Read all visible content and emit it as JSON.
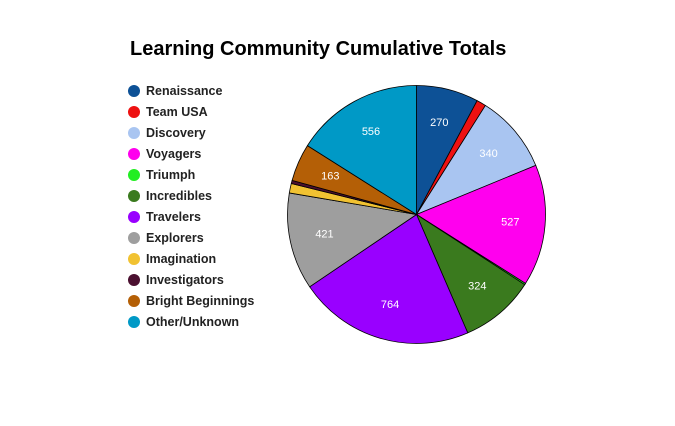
{
  "chart_data": {
    "type": "pie",
    "title": "Learning Community Cumulative Totals",
    "legend_position": "left",
    "slices": [
      {
        "name": "Renaissance",
        "value": 270,
        "label": "270",
        "color": "#0d5196"
      },
      {
        "name": "Team USA",
        "value": 41,
        "label": "",
        "color": "#ee1111"
      },
      {
        "name": "Discovery",
        "value": 340,
        "label": "340",
        "color": "#a9c5f1"
      },
      {
        "name": "Voyagers",
        "value": 527,
        "label": "527",
        "color": "#ff00ee"
      },
      {
        "name": "Triumph",
        "value": 6,
        "label": "",
        "color": "#22ee22"
      },
      {
        "name": "Incredibles",
        "value": 324,
        "label": "324",
        "color": "#3a7a1e"
      },
      {
        "name": "Travelers",
        "value": 764,
        "label": "764",
        "color": "#9900ff"
      },
      {
        "name": "Explorers",
        "value": 421,
        "label": "421",
        "color": "#9e9e9e"
      },
      {
        "name": "Imagination",
        "value": 41,
        "label": "",
        "color": "#f1c232"
      },
      {
        "name": "Investigators",
        "value": 14,
        "label": "",
        "color": "#4b1030"
      },
      {
        "name": "Bright Beginnings",
        "value": 163,
        "label": "163",
        "color": "#b45f06"
      },
      {
        "name": "Other/Unknown",
        "value": 556,
        "label": "556",
        "color": "#0099c6"
      }
    ]
  }
}
